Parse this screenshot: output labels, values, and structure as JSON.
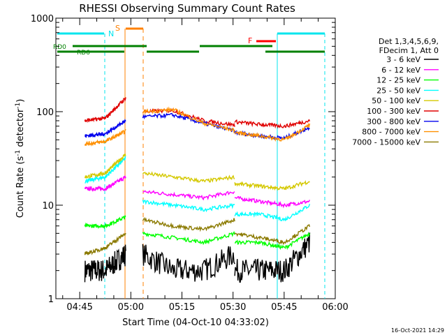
{
  "chart_data": {
    "type": "line",
    "title": "RHESSI Observing Summary Count Rates",
    "xlabel": "Start Time (04-Oct-10 04:33:02)",
    "ylabel_main": "Count Rate (s",
    "ylabel_sup1": "-1",
    "ylabel_mid": " detector",
    "ylabel_sup2": "-1",
    "ylabel_end": ")",
    "yscale": "log",
    "ylim": [
      1,
      1000
    ],
    "xlim_minutes": [
      -22,
      60
    ],
    "x_ticks": [
      {
        "label": "04:45",
        "t": -15
      },
      {
        "label": "05:00",
        "t": 0
      },
      {
        "label": "05:15",
        "t": 15
      },
      {
        "label": "05:30",
        "t": 30
      },
      {
        "label": "05:45",
        "t": 45
      },
      {
        "label": "06:00",
        "t": 60
      }
    ],
    "y_ticks": [
      {
        "label": "1",
        "v": 1
      },
      {
        "label": "10",
        "v": 10
      },
      {
        "label": "100",
        "v": 100
      },
      {
        "label": "1000",
        "v": 1000
      }
    ],
    "legend_header": [
      "Det 1,3,4,5,6,9,",
      "FDecim 1, Att 0"
    ],
    "series": [
      {
        "name": "3 - 6 keV",
        "color": "#000000"
      },
      {
        "name": "6 - 12 keV",
        "color": "#ff00ff"
      },
      {
        "name": "12 - 25 keV",
        "color": "#00ff00"
      },
      {
        "name": "25 - 50 keV",
        "color": "#00ffff"
      },
      {
        "name": "50 - 100 keV",
        "color": "#d4c800"
      },
      {
        "name": "100 - 300 keV",
        "color": "#e00000"
      },
      {
        "name": "300 - 800 keV",
        "color": "#0000ee"
      },
      {
        "name": "800 - 7000 keV",
        "color": "#ff9000"
      },
      {
        "name": "7000 - 15000 keV",
        "color": "#8b7a00"
      }
    ],
    "flag_labels": {
      "night": "N",
      "saa": "S",
      "flare": "F",
      "rd0": "RD0",
      "rd6": "RD6"
    },
    "flag_colors": {
      "night": "#00e5ee",
      "saa": "#ff8000",
      "flare": "#ff0000",
      "rd": "#008000"
    },
    "series_levels": [
      {
        "seg1": [
          2,
          2,
          3
        ],
        "seg2": [
          3,
          2,
          2,
          3
        ],
        "seg3": [
          2,
          2,
          2,
          4
        ]
      },
      {
        "seg1": [
          15,
          15,
          20
        ],
        "seg2": [
          14,
          13,
          12,
          14
        ],
        "seg3": [
          12,
          11,
          10,
          11
        ]
      },
      {
        "seg1": [
          6,
          6,
          7.5
        ],
        "seg2": [
          5,
          4.5,
          4,
          5
        ],
        "seg3": [
          4,
          4,
          3.5,
          5
        ]
      },
      {
        "seg1": [
          18,
          20,
          32
        ],
        "seg2": [
          11,
          10,
          9,
          10
        ],
        "seg3": [
          8,
          8,
          7,
          10
        ]
      },
      {
        "seg1": [
          20,
          22,
          35
        ],
        "seg2": [
          22,
          20,
          18,
          20
        ],
        "seg3": [
          17,
          16,
          15,
          18
        ]
      },
      {
        "seg1": [
          80,
          85,
          140
        ],
        "seg2": [
          100,
          103,
          80,
          72
        ],
        "seg3": [
          78,
          73,
          70,
          80
        ]
      },
      {
        "seg1": [
          55,
          58,
          80
        ],
        "seg2": [
          88,
          92,
          75,
          62
        ],
        "seg3": [
          60,
          55,
          52,
          68
        ]
      },
      {
        "seg1": [
          45,
          48,
          62
        ],
        "seg2": [
          100,
          105,
          75,
          63
        ],
        "seg3": [
          60,
          55,
          50,
          72
        ]
      },
      {
        "seg1": [
          3,
          3.5,
          5
        ],
        "seg2": [
          7,
          6,
          5.5,
          7
        ],
        "seg3": [
          5,
          4.5,
          4,
          6
        ]
      }
    ],
    "gap_times": {
      "seg1_start": -13.5,
      "seg1_end": -1.5,
      "seg2_start": 3.5,
      "seg2_end": 30.5,
      "seg3_start": 30.5,
      "seg3_end": 52.5
    }
  },
  "timestamp": "16-Oct-2021 14:29"
}
